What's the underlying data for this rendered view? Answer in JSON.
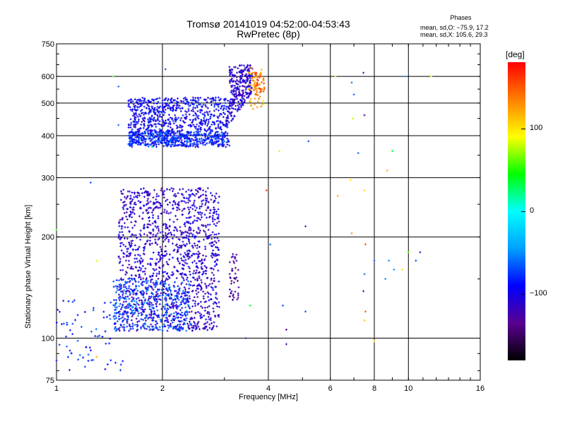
{
  "chart_data": {
    "type": "scatter",
    "title": "Tromsø 20141019 04:52:00-04:53:43",
    "subtitle": "RwPretec (8p)",
    "xlabel": "Frequency [MHz]",
    "ylabel": "Stationary phase Virtual Height [km]",
    "x_scale": "log",
    "y_scale": "log",
    "xlim": [
      1,
      16
    ],
    "ylim": [
      75,
      750
    ],
    "x_ticks": [
      1,
      2,
      4,
      6,
      8,
      10,
      16
    ],
    "y_ticks": [
      75,
      100,
      200,
      300,
      400,
      500,
      600,
      750
    ],
    "grid": true,
    "phase_box": {
      "heading": "Phases",
      "line_o": "mean, sd,O: −75.9, 17.2",
      "line_x": "mean, sd,X: 105.6, 29.3"
    },
    "colorbar": {
      "unit": "[deg]",
      "ticks": [
        {
          "label": "100",
          "value": 100
        },
        {
          "label": "0",
          "value": 0
        },
        {
          "label": "−100",
          "value": -100
        }
      ],
      "range": [
        -180,
        180
      ],
      "colors": [
        "#000000",
        "#5a0090",
        "#0000ff",
        "#00a0ff",
        "#00ffff",
        "#00ff00",
        "#ffff00",
        "#ff8000",
        "#ff0000"
      ]
    },
    "clusters": [
      {
        "name": "low trace",
        "x": [
          1.5,
          2.9
        ],
        "y": [
          105,
          280
        ],
        "phase": -110,
        "count": 1400
      },
      {
        "name": "low trace cyan",
        "x": [
          1.45,
          2.4
        ],
        "y": [
          105,
          150
        ],
        "phase": -70,
        "count": 350
      },
      {
        "name": "upper F trace",
        "x": [
          1.6,
          3.1
        ],
        "y": [
          370,
          520
        ],
        "phase": -95,
        "count": 900
      },
      {
        "name": "upper F base",
        "x": [
          1.6,
          3.0
        ],
        "y": [
          375,
          410
        ],
        "phase": -75,
        "count": 300
      },
      {
        "name": "cusp",
        "x": [
          3.1,
          3.6
        ],
        "y": [
          430,
          650
        ],
        "phase": -110,
        "count": 260
      },
      {
        "name": "X mode",
        "x": [
          3.5,
          3.9
        ],
        "y": [
          480,
          640
        ],
        "phase": 120,
        "count": 60
      },
      {
        "name": "X mode orange",
        "x": [
          3.6,
          3.9
        ],
        "y": [
          520,
          620
        ],
        "phase": 150,
        "count": 40
      },
      {
        "name": "sporadic low",
        "x": [
          1.0,
          1.6
        ],
        "y": [
          80,
          130
        ],
        "phase": -80,
        "count": 70
      },
      {
        "name": "low 3 MHz",
        "x": [
          3.1,
          3.3
        ],
        "y": [
          130,
          180
        ],
        "phase": -130,
        "count": 45
      }
    ],
    "isolated_points": [
      {
        "x": 1.45,
        "y": 600,
        "phase": 60
      },
      {
        "x": 1.5,
        "y": 560,
        "phase": -60
      },
      {
        "x": 1.5,
        "y": 430,
        "phase": -60
      },
      {
        "x": 2.04,
        "y": 630,
        "phase": -70
      },
      {
        "x": 1.87,
        "y": 370,
        "phase": 10
      },
      {
        "x": 1.0,
        "y": 210,
        "phase": 50
      },
      {
        "x": 1.25,
        "y": 290,
        "phase": -70
      },
      {
        "x": 1.3,
        "y": 170,
        "phase": 80
      },
      {
        "x": 1.3,
        "y": 88,
        "phase": 120
      },
      {
        "x": 1.6,
        "y": 150,
        "phase": -70
      },
      {
        "x": 3.45,
        "y": 100,
        "phase": -110
      },
      {
        "x": 3.55,
        "y": 125,
        "phase": 40
      },
      {
        "x": 4.05,
        "y": 190,
        "phase": -60
      },
      {
        "x": 3.95,
        "y": 275,
        "phase": 160
      },
      {
        "x": 4.3,
        "y": 360,
        "phase": 100
      },
      {
        "x": 4.4,
        "y": 125,
        "phase": -70
      },
      {
        "x": 4.5,
        "y": 106,
        "phase": -130
      },
      {
        "x": 4.5,
        "y": 96,
        "phase": -130
      },
      {
        "x": 5.1,
        "y": 215,
        "phase": -130
      },
      {
        "x": 5.1,
        "y": 120,
        "phase": -70
      },
      {
        "x": 5.2,
        "y": 385,
        "phase": -70
      },
      {
        "x": 6.2,
        "y": 600,
        "phase": 100
      },
      {
        "x": 6.3,
        "y": 265,
        "phase": 120
      },
      {
        "x": 6.85,
        "y": 295,
        "phase": 100
      },
      {
        "x": 6.9,
        "y": 205,
        "phase": 130
      },
      {
        "x": 6.9,
        "y": 575,
        "phase": -60
      },
      {
        "x": 7.0,
        "y": 530,
        "phase": -60
      },
      {
        "x": 6.95,
        "y": 450,
        "phase": 80
      },
      {
        "x": 7.2,
        "y": 355,
        "phase": -60
      },
      {
        "x": 7.45,
        "y": 615,
        "phase": -130
      },
      {
        "x": 7.5,
        "y": 460,
        "phase": -130
      },
      {
        "x": 7.5,
        "y": 275,
        "phase": 100
      },
      {
        "x": 7.55,
        "y": 190,
        "phase": 150
      },
      {
        "x": 7.55,
        "y": 120,
        "phase": 150
      },
      {
        "x": 7.5,
        "y": 113,
        "phase": 110
      },
      {
        "x": 7.45,
        "y": 138,
        "phase": -130
      },
      {
        "x": 7.5,
        "y": 155,
        "phase": -60
      },
      {
        "x": 8.0,
        "y": 170,
        "phase": -70
      },
      {
        "x": 8.6,
        "y": 150,
        "phase": -50
      },
      {
        "x": 8.7,
        "y": 315,
        "phase": 120
      },
      {
        "x": 8.8,
        "y": 170,
        "phase": -50
      },
      {
        "x": 9.0,
        "y": 360,
        "phase": 40
      },
      {
        "x": 9.1,
        "y": 160,
        "phase": -50
      },
      {
        "x": 9.6,
        "y": 160,
        "phase": 100
      },
      {
        "x": 9.8,
        "y": 600,
        "phase": -50
      },
      {
        "x": 10.0,
        "y": 180,
        "phase": 60
      },
      {
        "x": 10.5,
        "y": 170,
        "phase": -70
      },
      {
        "x": 10.8,
        "y": 180,
        "phase": -130
      },
      {
        "x": 11.6,
        "y": 600,
        "phase": 90
      },
      {
        "x": 8.0,
        "y": 98,
        "phase": 100
      }
    ]
  }
}
